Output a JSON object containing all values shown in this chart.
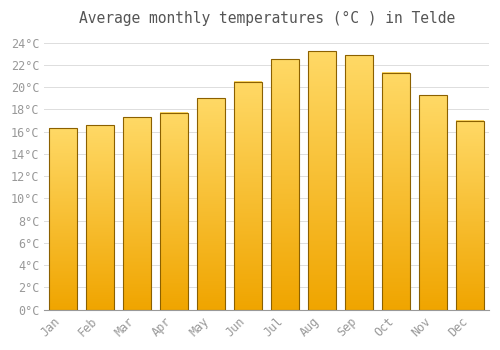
{
  "title": "Average monthly temperatures (°C ) in Telde",
  "months": [
    "Jan",
    "Feb",
    "Mar",
    "Apr",
    "May",
    "Jun",
    "Jul",
    "Aug",
    "Sep",
    "Oct",
    "Nov",
    "Dec"
  ],
  "values": [
    16.3,
    16.6,
    17.3,
    17.7,
    19.0,
    20.5,
    22.5,
    23.2,
    22.9,
    21.3,
    19.3,
    17.0
  ],
  "bar_color_light": "#FFD966",
  "bar_color_dark": "#F0A500",
  "bar_edge_color": "#8B6000",
  "background_color": "#FFFFFF",
  "grid_color": "#DDDDDD",
  "ytick_step": 2,
  "ymin": 0,
  "ymax": 25,
  "title_fontsize": 10.5,
  "tick_fontsize": 8.5,
  "tick_color": "#999999",
  "title_color": "#555555"
}
